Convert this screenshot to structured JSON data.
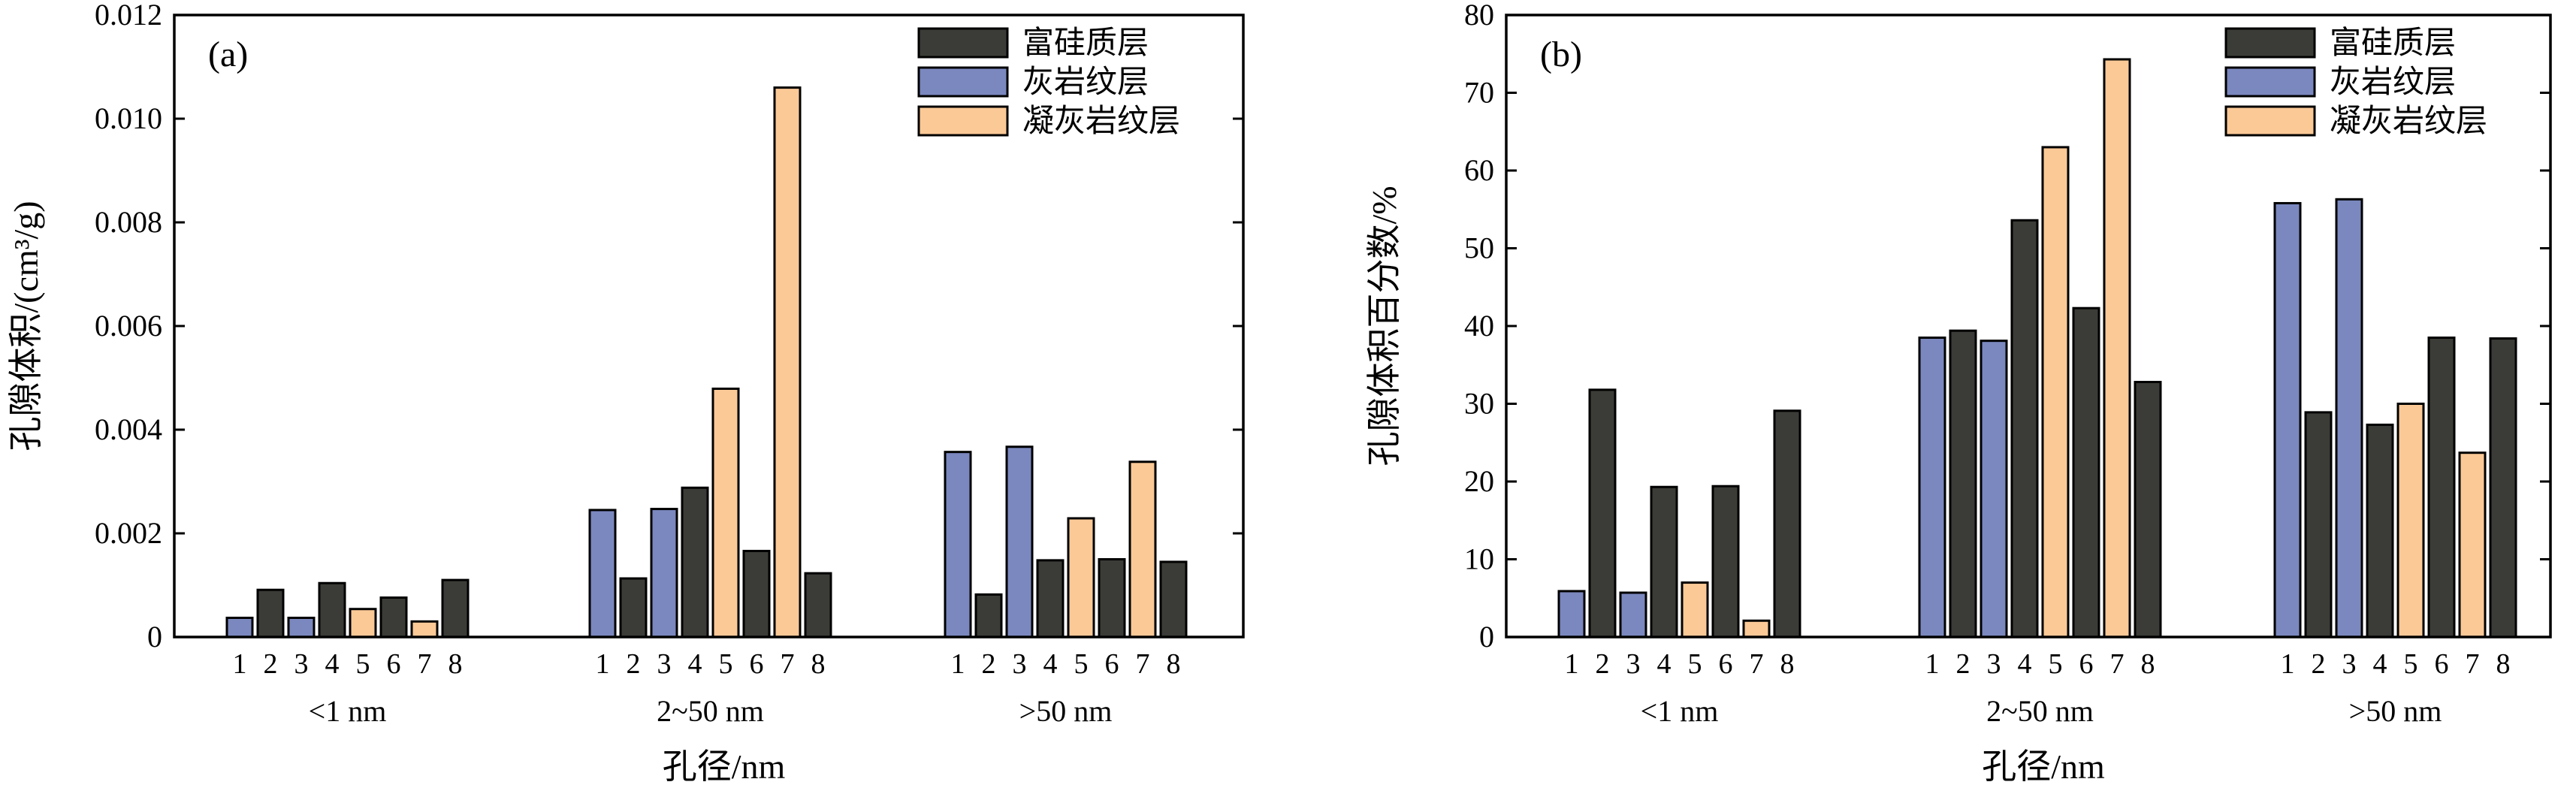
{
  "colors": {
    "富硅质层": "#3b3c37",
    "灰岩纹层": "#7b88bf",
    "凝灰岩纹层": "#fbc996"
  },
  "chart_data": [
    {
      "type": "bar",
      "panel_label": "(a)",
      "xlabel": "孔径/nm",
      "ylabel": "孔隙体积/(cm³/g)",
      "ylim": [
        0,
        0.012
      ],
      "yticks": [
        "0",
        "0.002",
        "0.004",
        "0.006",
        "0.008",
        "0.010",
        "0.012"
      ],
      "legend": [
        "富硅质层",
        "灰岩纹层",
        "凝灰岩纹层"
      ],
      "legend_position": "top-right",
      "groups": [
        {
          "label": "<1 nm",
          "samples": [
            "1",
            "2",
            "3",
            "4",
            "5",
            "6",
            "7",
            "8"
          ],
          "types": [
            "灰岩纹层",
            "富硅质层",
            "灰岩纹层",
            "富硅质层",
            "凝灰岩纹层",
            "富硅质层",
            "凝灰岩纹层",
            "富硅质层"
          ],
          "values": [
            0.00037,
            0.00091,
            0.00037,
            0.00104,
            0.00054,
            0.00076,
            0.0003,
            0.0011
          ]
        },
        {
          "label": "2~50 nm",
          "samples": [
            "1",
            "2",
            "3",
            "4",
            "5",
            "6",
            "7",
            "8"
          ],
          "types": [
            "灰岩纹层",
            "富硅质层",
            "灰岩纹层",
            "富硅质层",
            "凝灰岩纹层",
            "富硅质层",
            "凝灰岩纹层",
            "富硅质层"
          ],
          "values": [
            0.00245,
            0.00113,
            0.00247,
            0.00288,
            0.00479,
            0.00166,
            0.0106,
            0.00123
          ]
        },
        {
          "label": ">50 nm",
          "samples": [
            "1",
            "2",
            "3",
            "4",
            "5",
            "6",
            "7",
            "8"
          ],
          "types": [
            "灰岩纹层",
            "富硅质层",
            "灰岩纹层",
            "富硅质层",
            "凝灰岩纹层",
            "富硅质层",
            "凝灰岩纹层",
            "富硅质层"
          ],
          "values": [
            0.00357,
            0.00082,
            0.00367,
            0.00148,
            0.00229,
            0.0015,
            0.00338,
            0.00145
          ]
        }
      ]
    },
    {
      "type": "bar",
      "panel_label": "(b)",
      "xlabel": "孔径/nm",
      "ylabel": "孔隙体积百分数/%",
      "ylim": [
        0,
        80
      ],
      "yticks": [
        "0",
        "10",
        "20",
        "30",
        "40",
        "50",
        "60",
        "70",
        "80"
      ],
      "legend": [
        "富硅质层",
        "灰岩纹层",
        "凝灰岩纹层"
      ],
      "legend_position": "top-right",
      "groups": [
        {
          "label": "<1 nm",
          "samples": [
            "1",
            "2",
            "3",
            "4",
            "5",
            "6",
            "7",
            "8"
          ],
          "types": [
            "灰岩纹层",
            "富硅质层",
            "灰岩纹层",
            "富硅质层",
            "凝灰岩纹层",
            "富硅质层",
            "凝灰岩纹层",
            "富硅质层"
          ],
          "values": [
            5.9,
            31.8,
            5.7,
            19.3,
            7.0,
            19.4,
            2.1,
            29.1
          ]
        },
        {
          "label": "2~50 nm",
          "samples": [
            "1",
            "2",
            "3",
            "4",
            "5",
            "6",
            "7",
            "8"
          ],
          "types": [
            "灰岩纹层",
            "富硅质层",
            "灰岩纹层",
            "富硅质层",
            "凝灰岩纹层",
            "富硅质层",
            "凝灰岩纹层",
            "富硅质层"
          ],
          "values": [
            38.5,
            39.4,
            38.1,
            53.6,
            63.0,
            42.3,
            74.3,
            32.8
          ]
        },
        {
          "label": ">50 nm",
          "samples": [
            "1",
            "2",
            "3",
            "4",
            "5",
            "6",
            "7",
            "8"
          ],
          "types": [
            "灰岩纹层",
            "富硅质层",
            "灰岩纹层",
            "富硅质层",
            "凝灰岩纹层",
            "富硅质层",
            "凝灰岩纹层",
            "富硅质层"
          ],
          "values": [
            55.8,
            28.9,
            56.3,
            27.3,
            30.0,
            38.5,
            23.7,
            38.4
          ]
        }
      ]
    }
  ]
}
